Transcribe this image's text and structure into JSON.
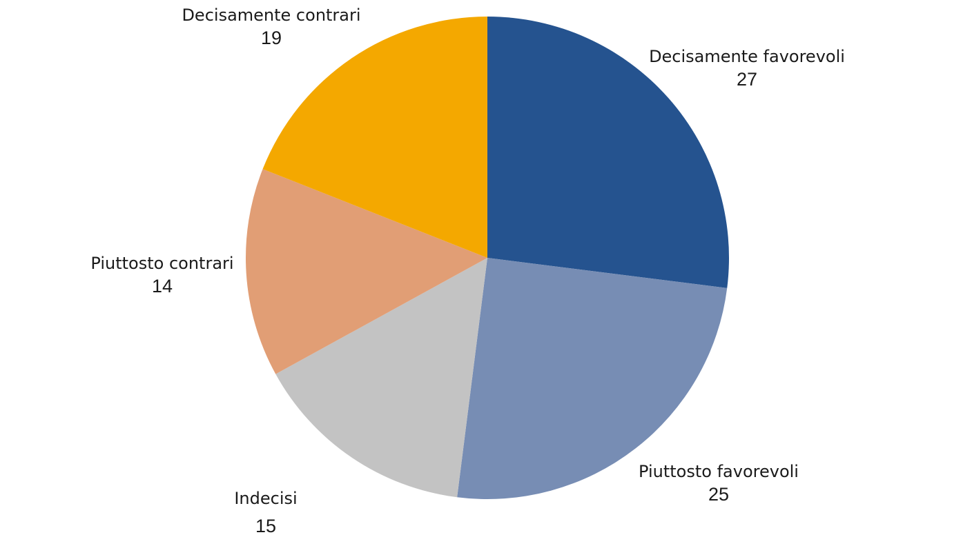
{
  "chart_data": {
    "type": "pie",
    "start_angle_deg": 0,
    "direction": "clockwise",
    "slices": [
      {
        "label": "Decisamente favorevoli",
        "value": 27,
        "color": "#25538f"
      },
      {
        "label": "Piuttosto favorevoli",
        "value": 25,
        "color": "#778db4"
      },
      {
        "label": "Indecisi",
        "value": 15,
        "color": "#c3c3c3"
      },
      {
        "label": "Piuttosto contrari",
        "value": 14,
        "color": "#e19e75"
      },
      {
        "label": "Decisamente contrari",
        "value": 19,
        "color": "#f4a800"
      }
    ]
  }
}
